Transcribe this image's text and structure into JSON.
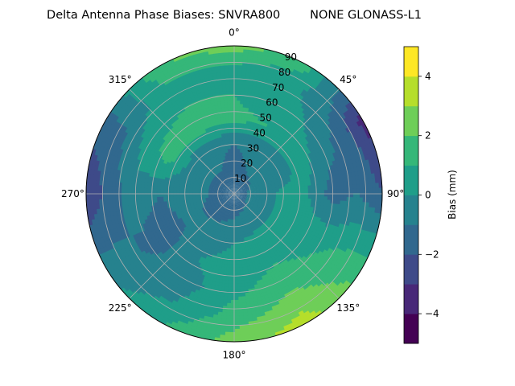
{
  "chart_data": {
    "type": "polar-contourf",
    "title": "Delta Antenna Phase Biases: SNVRA800        NONE GLONASS-L1",
    "theta_direction": "clockwise",
    "theta_zero": "north",
    "theta_ticks": [
      {
        "deg": 0,
        "label": "0°"
      },
      {
        "deg": 45,
        "label": "45°"
      },
      {
        "deg": 90,
        "label": "90°"
      },
      {
        "deg": 135,
        "label": "135°"
      },
      {
        "deg": 180,
        "label": "180°"
      },
      {
        "deg": 225,
        "label": "225°"
      },
      {
        "deg": 270,
        "label": "270°"
      },
      {
        "deg": 315,
        "label": "315°"
      }
    ],
    "r_range": [
      0,
      90
    ],
    "r_ticks": [
      10,
      20,
      30,
      40,
      50,
      60,
      70,
      80,
      90
    ],
    "grid": true,
    "colormap": "viridis",
    "levels": [
      -5,
      -4,
      -3,
      -2,
      -1,
      0,
      1,
      2,
      3,
      4,
      5
    ],
    "level_colors": [
      "#440154",
      "#482878",
      "#3e4a89",
      "#31688e",
      "#26828e",
      "#1f9e89",
      "#35b779",
      "#6ece58",
      "#b5de2b",
      "#fde725"
    ],
    "colorbar": {
      "label": "Bias (mm)",
      "ticks": [
        -4,
        -2,
        0,
        2,
        4
      ],
      "range": [
        -5,
        5
      ]
    },
    "field": {
      "theta_deg": [
        0,
        30,
        60,
        90,
        120,
        150,
        180,
        210,
        240,
        270,
        300,
        330
      ],
      "r": [
        0,
        15,
        30,
        45,
        60,
        75,
        90
      ],
      "bias_mm": [
        [
          -1.5,
          -1.2,
          -1.0,
          1.2,
          1.0,
          0.5,
          2.5
        ],
        [
          -1.5,
          -1.0,
          -0.8,
          1.0,
          0.5,
          0.2,
          1.5
        ],
        [
          -1.5,
          -0.8,
          -0.5,
          0.5,
          -0.5,
          -1.5,
          -3.5
        ],
        [
          -1.5,
          -0.5,
          0.2,
          0.0,
          -1.5,
          -1.0,
          -2.0
        ],
        [
          -1.5,
          -0.6,
          0.3,
          0.5,
          0.8,
          1.2,
          1.5
        ],
        [
          -1.5,
          -0.8,
          0.3,
          0.8,
          1.5,
          2.5,
          3.5
        ],
        [
          -1.5,
          -1.0,
          0.0,
          0.5,
          0.8,
          1.5,
          2.5
        ],
        [
          -1.5,
          -1.2,
          -0.5,
          0.0,
          -0.5,
          0.0,
          1.0
        ],
        [
          -1.5,
          -1.2,
          -0.8,
          -1.5,
          -1.2,
          -0.8,
          -0.5
        ],
        [
          -1.5,
          -1.0,
          -0.5,
          -1.0,
          -0.5,
          -1.5,
          -3.0
        ],
        [
          -1.5,
          -1.0,
          -0.5,
          1.5,
          0.5,
          -1.0,
          -1.5
        ],
        [
          -1.5,
          -1.0,
          -0.8,
          1.5,
          1.0,
          0.8,
          2.0
        ]
      ]
    }
  }
}
